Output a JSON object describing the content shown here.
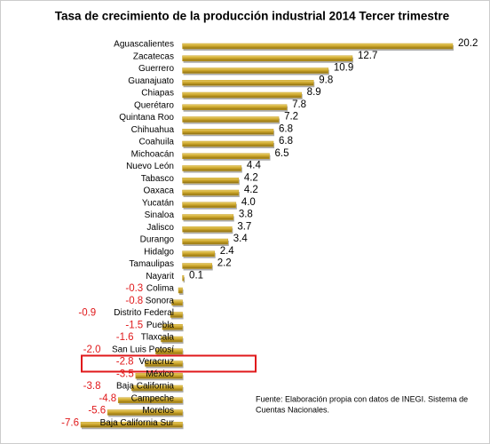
{
  "chart_data": {
    "type": "bar",
    "orientation": "horizontal",
    "title": "Tasa de crecimiento de la producción industrial 2014 Tercer trimestre",
    "categories": [
      "Aguascalientes",
      "Zacatecas",
      "Guerrero",
      "Guanajuato",
      "Chiapas",
      "Querétaro",
      "Quintana Roo",
      "Chihuahua",
      "Coahuila",
      "Michoacán",
      "Nuevo León",
      "Tabasco",
      "Oaxaca",
      "Yucatán",
      "Sinaloa",
      "Jalisco",
      "Durango",
      "Hidalgo",
      "Tamaulipas",
      "Nayarit",
      "Colima",
      "Sonora",
      "Distrito Federal",
      "Puebla",
      "Tlaxcala",
      "San Luis Potosí",
      "Veracruz",
      "México",
      "Baja California",
      "Campeche",
      "Morelos",
      "Baja California Sur"
    ],
    "values": [
      20.2,
      12.7,
      10.9,
      9.8,
      8.9,
      7.8,
      7.2,
      6.8,
      6.8,
      6.5,
      4.4,
      4.2,
      4.2,
      4.0,
      3.8,
      3.7,
      3.4,
      2.4,
      2.2,
      0.1,
      -0.3,
      -0.8,
      -0.9,
      -1.5,
      -1.6,
      -2.0,
      -2.8,
      -3.5,
      -3.8,
      -4.8,
      -5.6,
      -7.6
    ],
    "value_labels": [
      "20.2",
      "12.7",
      "10.9",
      "9.8",
      "8.9",
      "7.8",
      "7.2",
      "6.8",
      "6.8",
      "6.5",
      "4.4",
      "4.2",
      "4.2",
      "4.0",
      "3.8",
      "3.7",
      "3.4",
      "2.4",
      "2.2",
      "0.1",
      "-0.3",
      "-0.8",
      "-0.9",
      "-1.5",
      "-1.6",
      "-2.0",
      "-2.8",
      "-3.5",
      "-3.8",
      "-4.8",
      "-5.6",
      "-7.6"
    ],
    "color": "#c9a227",
    "negative_label_color": "#e0191b",
    "highlight": "Veracruz",
    "note": [
      "Fuente: Elaboración propia con datos de  INEGI. Sistema de",
      "Cuentas Nacionales."
    ]
  }
}
